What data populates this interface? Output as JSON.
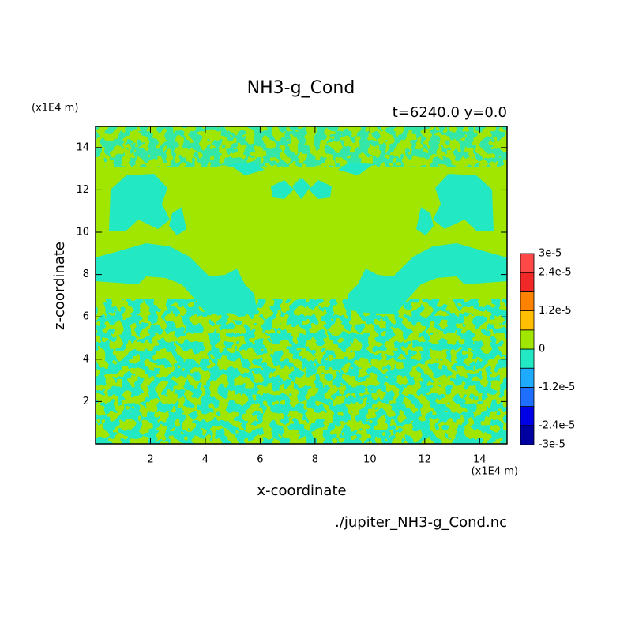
{
  "chart_data": {
    "type": "contour",
    "title": "NH3-g_Cond",
    "subtitle": "t=6240.0 y=0.0",
    "xlabel": "x-coordinate",
    "ylabel": "z-coordinate",
    "xunit": "(x1E4 m)",
    "yunit": "(x1E4 m)",
    "source": "./jupiter_NH3-g_Cond.nc",
    "xlim": [
      0,
      15
    ],
    "ylim": [
      0,
      15
    ],
    "xticks": [
      2,
      4,
      6,
      8,
      10,
      12,
      14
    ],
    "yticks": [
      2,
      4,
      6,
      8,
      10,
      12,
      14
    ],
    "colorbar": {
      "levels": [
        {
          "value": -3e-05,
          "label": "-3e-5"
        },
        {
          "value": -2.4e-05,
          "label": "-2.4e-5"
        },
        -1.8e-05,
        {
          "value": -1.2e-05,
          "label": "-1.2e-5"
        },
        -6e-06,
        0,
        6e-06,
        {
          "value": 1.2e-05,
          "label": "1.2e-5"
        },
        1.8e-05,
        {
          "value": 2.4e-05,
          "label": "2.4e-5"
        },
        {
          "value": 3e-05,
          "label": "3e-5"
        }
      ],
      "colors": [
        "#0000a0",
        "#0000e6",
        "#1e6eff",
        "#1eaaff",
        "#22e8c4",
        "#a0e600",
        "#ffbe00",
        "#ff8200",
        "#f02828",
        "#ff4848"
      ]
    }
  }
}
